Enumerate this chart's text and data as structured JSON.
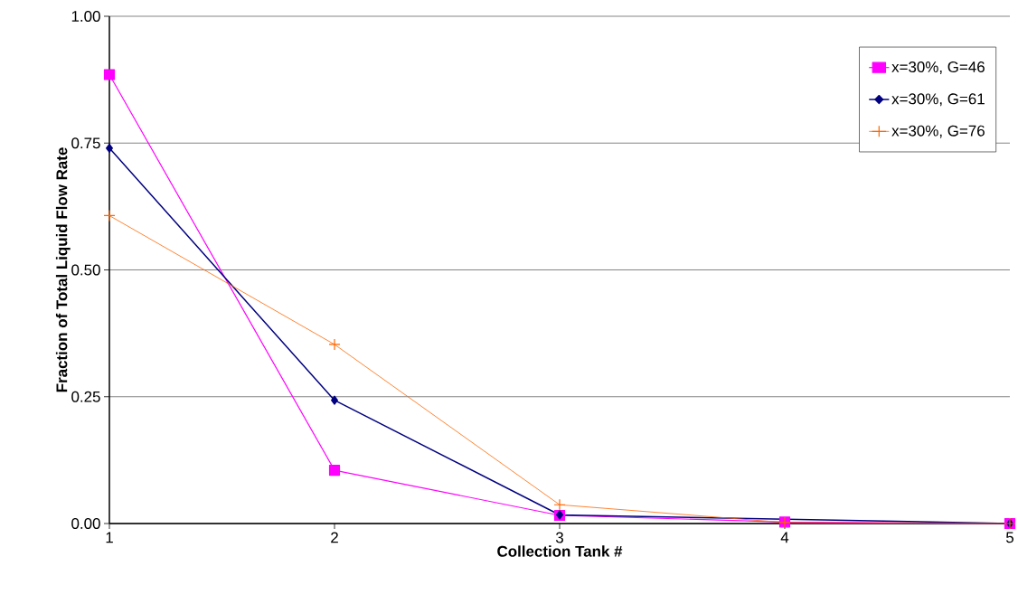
{
  "chart_data": {
    "type": "line",
    "xlabel": "Collection Tank #",
    "ylabel": "Fraction of Total Liquid Flow Rate",
    "x": [
      1,
      2,
      3,
      4,
      5
    ],
    "xlim": [
      1,
      5
    ],
    "xticks": [
      1,
      2,
      3,
      4,
      5
    ],
    "ylim": [
      0,
      1
    ],
    "yticks": [
      {
        "value": 0,
        "label": "0.00"
      },
      {
        "value": 0.25,
        "label": "0.25"
      },
      {
        "value": 0.5,
        "label": "0.50"
      },
      {
        "value": 0.75,
        "label": "0.75"
      },
      {
        "value": 1,
        "label": "1.00"
      }
    ],
    "grid": "y",
    "legend": "top right",
    "series": [
      {
        "name": "x=30%, G=46",
        "color": "#ff00ff",
        "marker": "square",
        "values": [
          0.885,
          0.105,
          0.016,
          0.003,
          0
        ]
      },
      {
        "name": "x=30%, G=61",
        "color": "#000080",
        "marker": "diamond",
        "values": [
          0.74,
          0.243,
          0.017,
          null,
          0
        ]
      },
      {
        "name": "x=30%, G=76",
        "color": "#ff6600",
        "marker": "cross",
        "values": [
          0.607,
          0.353,
          0.037,
          0.002,
          0
        ]
      }
    ]
  }
}
